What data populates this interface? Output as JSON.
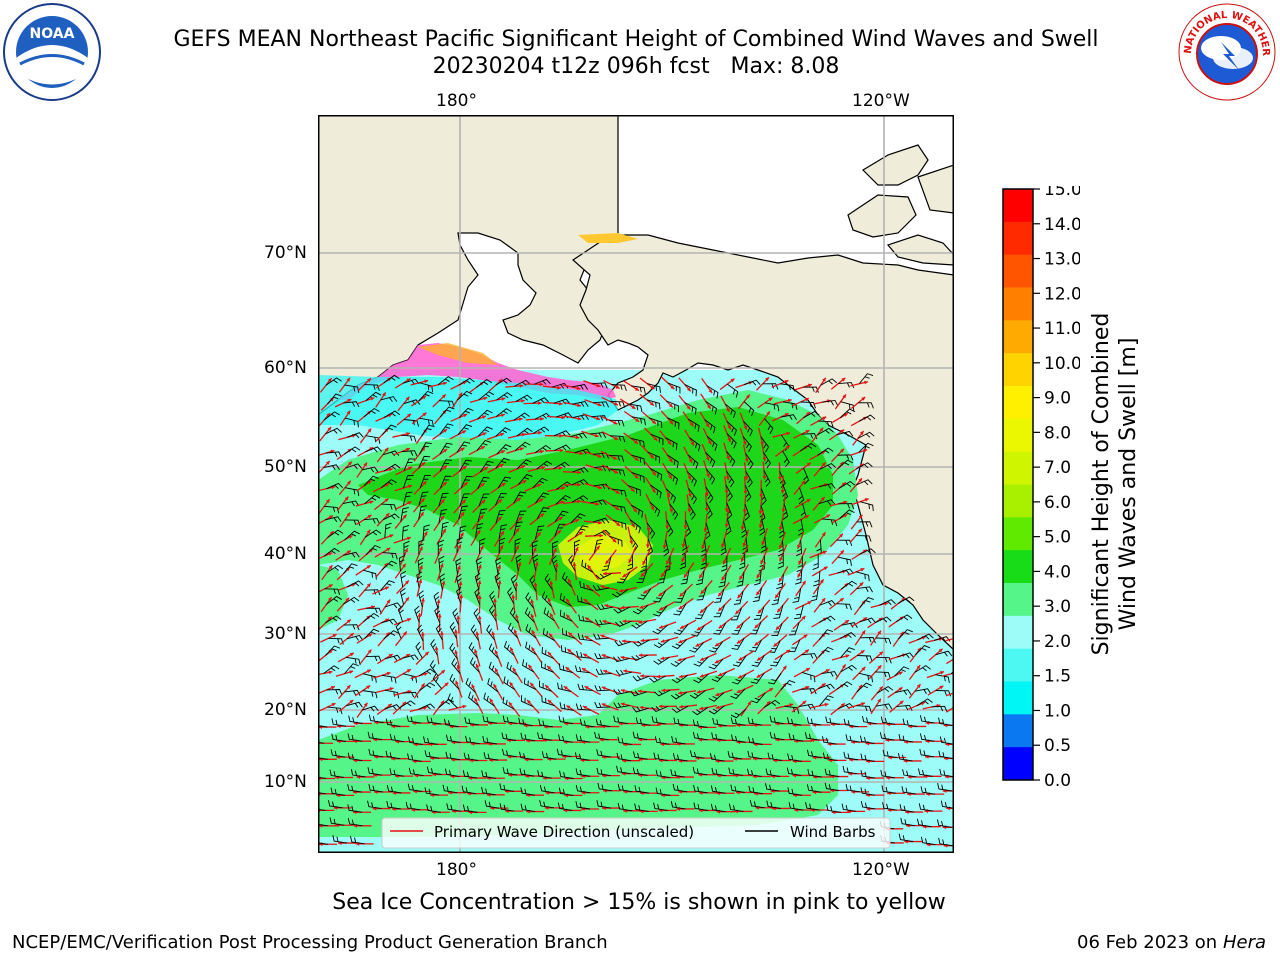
{
  "header": {
    "title_line1": "GEFS MEAN Northeast Pacific Significant Height of Combined Wind Waves and Swell",
    "title_line2": "20230204 t12z 096h fcst   Max: 8.08"
  },
  "logos": {
    "left": {
      "name": "noaa-logo",
      "text": "NOAA",
      "ring_text": "NATIONAL OCEANIC AND ATMOSPHERIC ADMINISTRATION · U.S. DEPARTMENT OF COMMERCE"
    },
    "right": {
      "name": "nws-logo",
      "ring_text": "NATIONAL WEATHER SERVICE"
    }
  },
  "map": {
    "lon_labels": [
      "180°",
      "120°W"
    ],
    "lat_labels": [
      "70°N",
      "60°N",
      "50°N",
      "40°N",
      "30°N",
      "20°N",
      "10°N"
    ],
    "legend": {
      "wave": "Primary Wave Direction (unscaled)",
      "wind": "Wind Barbs"
    },
    "colors": {
      "land": "#efecda",
      "ocean_low": "#9dfbf8",
      "swell_3_4": "#55f58a",
      "swell_4_5": "#1ed61a",
      "peak": "#c7f20f",
      "ice": "#ff5fd0",
      "wave_arrow": "#e51212",
      "barb": "#000000"
    }
  },
  "colorbar": {
    "label": "Significant Height of Combined Wind Waves and Swell [m]",
    "label_line1": "Significant Height of Combined",
    "label_line2": "Wind Waves and Swell [m]",
    "ticks": [
      "15.0",
      "14.0",
      "13.0",
      "12.0",
      "11.0",
      "10.0",
      "9.0",
      "8.0",
      "7.0",
      "6.0",
      "5.0",
      "4.0",
      "3.0",
      "2.0",
      "1.5",
      "1.0",
      "0.5",
      "0.0"
    ],
    "colors_top_down": [
      "#ff0000",
      "#ff2a00",
      "#ff5500",
      "#ff8000",
      "#ffaa00",
      "#ffd300",
      "#fff000",
      "#eaf700",
      "#d0f500",
      "#a8f000",
      "#60ea00",
      "#18dc18",
      "#55f58a",
      "#9dfbf8",
      "#4df7f2",
      "#00f5f5",
      "#0a78f0",
      "#0000ff"
    ]
  },
  "note": "Sea Ice Concentration > 15% is shown in pink to yellow",
  "footer": {
    "left": "NCEP/EMC/Verification Post Processing Product Generation Branch",
    "date": "06 Feb 2023 on",
    "host": "Hera"
  }
}
